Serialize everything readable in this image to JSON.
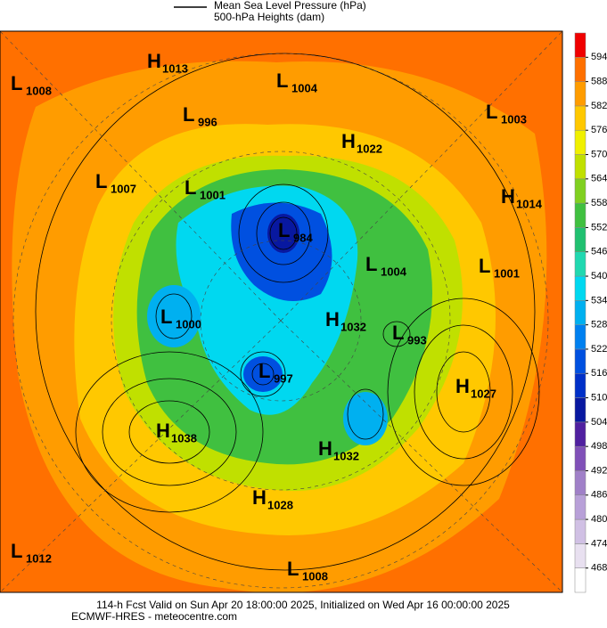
{
  "legend": {
    "line_label": "Mean Sea Level Pressure (hPa)",
    "fill_label": "500-hPa Heights (dam)"
  },
  "centers": [
    {
      "type": "H",
      "value": 1013
    },
    {
      "type": "L",
      "value": 1008
    },
    {
      "type": "L",
      "value": 1004
    },
    {
      "type": "L",
      "value": 996
    },
    {
      "type": "L",
      "value": 1003
    },
    {
      "type": "H",
      "value": 1022
    },
    {
      "type": "L",
      "value": 1007
    },
    {
      "type": "L",
      "value": 1001
    },
    {
      "type": "H",
      "value": 1014
    },
    {
      "type": "L",
      "value": 984
    },
    {
      "type": "L",
      "value": 1004
    },
    {
      "type": "L",
      "value": 1001
    },
    {
      "type": "L",
      "value": 1000
    },
    {
      "type": "H",
      "value": 1032
    },
    {
      "type": "L",
      "value": 993
    },
    {
      "type": "L",
      "value": 997
    },
    {
      "type": "H",
      "value": 1027
    },
    {
      "type": "H",
      "value": 1038
    },
    {
      "type": "H",
      "value": 1032
    },
    {
      "type": "H",
      "value": 1028
    },
    {
      "type": "L",
      "value": 1012
    },
    {
      "type": "L",
      "value": 1008
    }
  ],
  "colorbar": {
    "ticks": [
      468,
      474,
      480,
      486,
      492,
      498,
      504,
      510,
      516,
      522,
      528,
      534,
      540,
      546,
      552,
      558,
      564,
      570,
      576,
      582,
      588,
      594
    ],
    "colors": [
      "#ffffff",
      "#e8e0f0",
      "#d0c0e4",
      "#b8a0d8",
      "#a080c8",
      "#8050b8",
      "#5020a0",
      "#0818a0",
      "#0030c8",
      "#0050e0",
      "#0080f0",
      "#00b0f0",
      "#00d8f0",
      "#20d8b0",
      "#20c070",
      "#40c040",
      "#80d020",
      "#c0e000",
      "#f0f000",
      "#ffc800",
      "#ff9c00",
      "#ff7000",
      "#f00000"
    ]
  },
  "footer": {
    "line1": "114-h Fcst Valid on Sun Apr 20 18:00:00 2025, Initialized on Wed Apr 16 00:00:00 2025",
    "line2": "ECMWF-HRES  - meteocentre.com"
  }
}
